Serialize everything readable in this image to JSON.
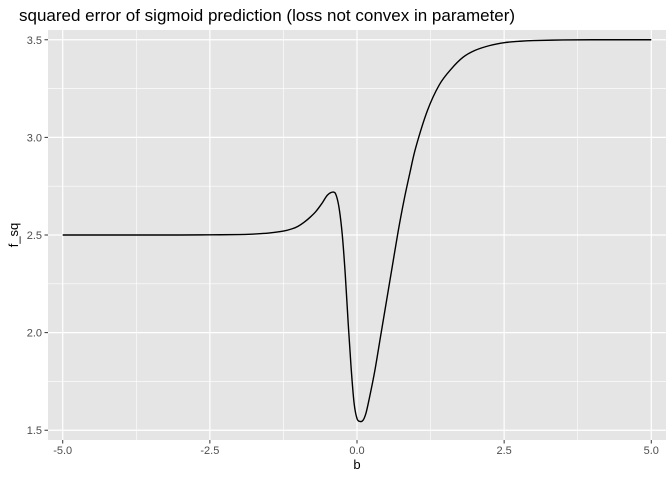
{
  "chart_data": {
    "type": "line",
    "title": "squared error of sigmoid prediction (loss not convex in parameter)",
    "xlabel": "b",
    "ylabel": "f_sq",
    "xlim": [
      -5.25,
      5.25
    ],
    "ylim": [
      1.45,
      3.55
    ],
    "x_ticks": [
      -5.0,
      -2.5,
      0.0,
      2.5,
      5.0
    ],
    "x_tick_labels": [
      "-5.0",
      "-2.5",
      "0.0",
      "2.5",
      "5.0"
    ],
    "y_ticks": [
      1.5,
      2.0,
      2.5,
      3.0,
      3.5
    ],
    "y_tick_labels": [
      "1.5",
      "2.0",
      "2.5",
      "3.0",
      "3.5"
    ],
    "grid": true,
    "panel_background": "#e5e5e5",
    "grid_color": "#ffffff",
    "line_color": "#000000",
    "series": [
      {
        "name": "f_sq",
        "x": [
          -5.0,
          -4.0,
          -3.0,
          -2.5,
          -2.0,
          -1.75,
          -1.5,
          -1.25,
          -1.1,
          -1.0,
          -0.9,
          -0.8,
          -0.7,
          -0.6,
          -0.5,
          -0.4,
          -0.35,
          -0.3,
          -0.25,
          -0.2,
          -0.15,
          -0.1,
          -0.05,
          0.0,
          0.05,
          0.1,
          0.15,
          0.2,
          0.3,
          0.4,
          0.5,
          0.6,
          0.7,
          0.8,
          0.9,
          1.0,
          1.2,
          1.4,
          1.6,
          1.8,
          2.0,
          2.25,
          2.5,
          2.75,
          3.0,
          3.5,
          4.0,
          4.5,
          5.0
        ],
        "y": [
          2.5,
          2.5,
          2.5,
          2.501,
          2.502,
          2.505,
          2.51,
          2.52,
          2.532,
          2.545,
          2.565,
          2.59,
          2.62,
          2.66,
          2.705,
          2.72,
          2.7,
          2.63,
          2.5,
          2.3,
          2.05,
          1.82,
          1.64,
          1.56,
          1.545,
          1.55,
          1.585,
          1.65,
          1.8,
          1.98,
          2.16,
          2.34,
          2.52,
          2.68,
          2.82,
          2.95,
          3.14,
          3.27,
          3.35,
          3.41,
          3.445,
          3.47,
          3.485,
          3.492,
          3.496,
          3.499,
          3.5,
          3.5,
          3.5
        ]
      }
    ]
  }
}
